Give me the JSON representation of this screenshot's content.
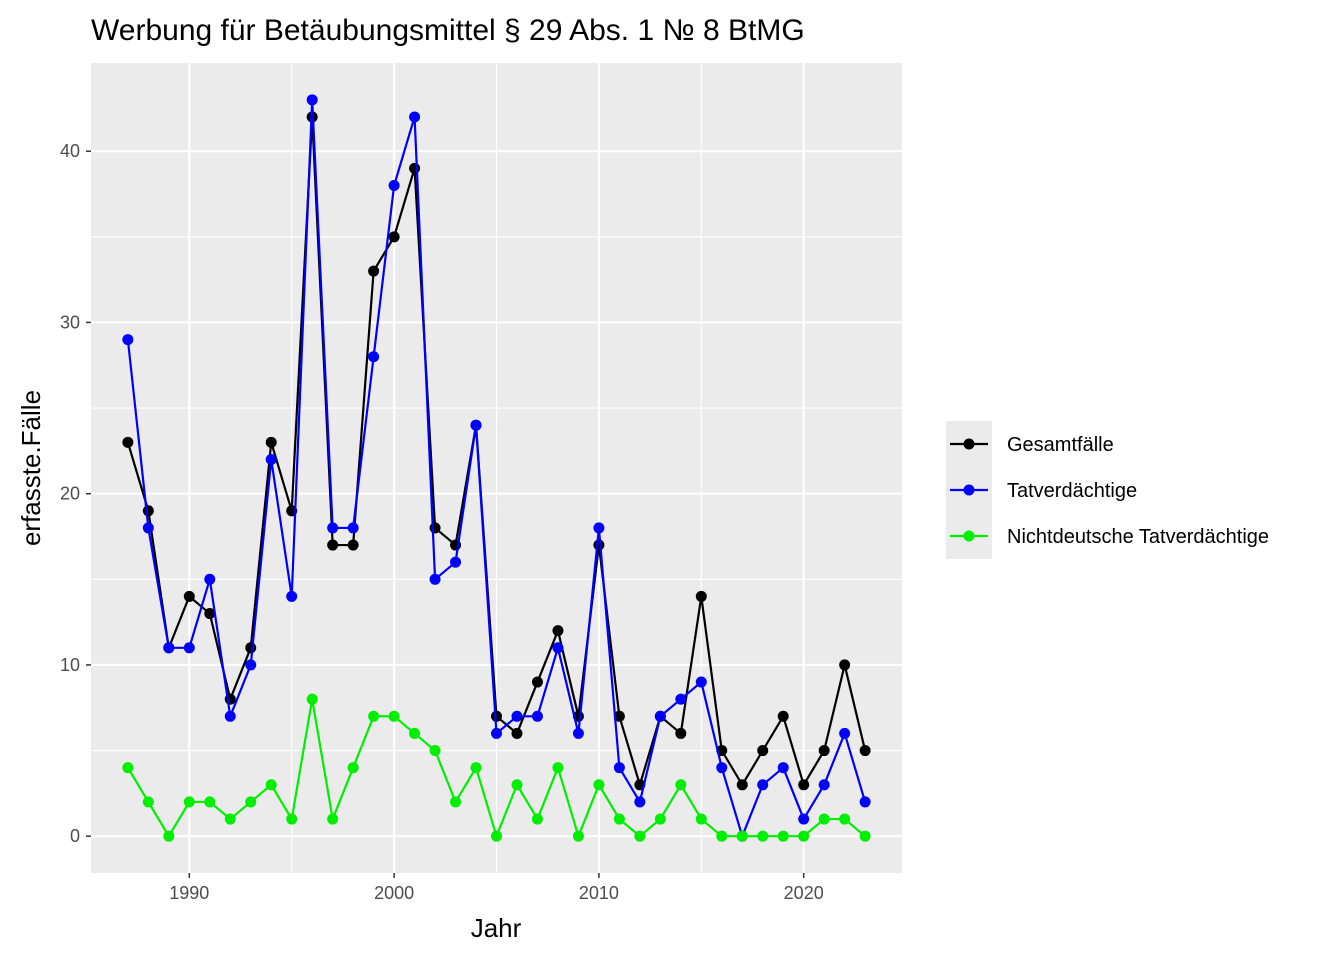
{
  "chart_data": {
    "type": "line",
    "title": "Werbung für Betäubungsmittel § 29 Abs. 1 № 8 BtMG",
    "xlabel": "Jahr",
    "ylabel": "erfasste.Fälle",
    "xlim": [
      1985.2,
      2024.8
    ],
    "ylim": [
      -2.15,
      45.15
    ],
    "x_ticks": [
      1990,
      2000,
      2010,
      2020
    ],
    "y_ticks": [
      0,
      10,
      20,
      30,
      40
    ],
    "x_minor": [
      1985,
      1995,
      2005,
      2015
    ],
    "y_minor": [
      5,
      15,
      25,
      35
    ],
    "grid": true,
    "background": "#ebebeb",
    "legend_position": "right",
    "x": [
      1987,
      1988,
      1989,
      1990,
      1991,
      1992,
      1993,
      1994,
      1995,
      1996,
      1997,
      1998,
      1999,
      2000,
      2001,
      2002,
      2003,
      2004,
      2005,
      2006,
      2007,
      2008,
      2009,
      2010,
      2011,
      2012,
      2013,
      2014,
      2015,
      2016,
      2017,
      2018,
      2019,
      2020,
      2021,
      2022,
      2023
    ],
    "series": [
      {
        "name": "Gesamtfälle",
        "color": "#000000",
        "values": [
          23,
          19,
          11,
          14,
          13,
          8,
          11,
          23,
          19,
          42,
          17,
          17,
          33,
          35,
          39,
          18,
          17,
          24,
          7,
          6,
          9,
          12,
          7,
          17,
          7,
          3,
          7,
          6,
          14,
          5,
          3,
          5,
          7,
          3,
          5,
          10,
          5
        ]
      },
      {
        "name": "Tatverdächtige",
        "color": "#0000ff",
        "values": [
          29,
          18,
          11,
          11,
          15,
          7,
          10,
          22,
          14,
          43,
          18,
          18,
          28,
          38,
          42,
          15,
          16,
          24,
          6,
          7,
          7,
          11,
          6,
          18,
          4,
          2,
          7,
          8,
          9,
          4,
          0,
          3,
          4,
          1,
          3,
          6,
          2
        ]
      },
      {
        "name": "Nichtdeutsche Tatverdächtige",
        "color": "#00ee00",
        "values": [
          4,
          2,
          0,
          2,
          2,
          1,
          2,
          3,
          1,
          8,
          1,
          4,
          7,
          7,
          6,
          5,
          2,
          4,
          0,
          3,
          1,
          4,
          0,
          3,
          1,
          0,
          1,
          3,
          1,
          0,
          0,
          0,
          0,
          0,
          1,
          1,
          0
        ]
      }
    ]
  }
}
